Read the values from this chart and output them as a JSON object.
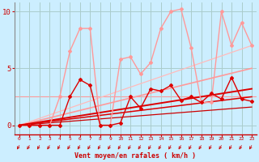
{
  "background_color": "#cceeff",
  "grid_color": "#aacccc",
  "xlim": [
    -0.5,
    23.5
  ],
  "ylim": [
    -0.8,
    10.8
  ],
  "yticks": [
    0,
    5,
    10
  ],
  "xticks": [
    0,
    1,
    2,
    3,
    4,
    5,
    6,
    7,
    8,
    9,
    10,
    11,
    12,
    13,
    14,
    15,
    16,
    17,
    18,
    19,
    20,
    21,
    22,
    23
  ],
  "xlabel": "Vent moyen/en rafales ( km/h )",
  "xlabel_color": "#cc0000",
  "tick_color": "#cc0000",
  "arrow_color": "#cc0000",
  "line_dark_x": [
    0,
    1,
    2,
    3,
    4,
    5,
    6,
    7,
    8,
    9,
    10,
    11,
    12,
    13,
    14,
    15,
    16,
    17,
    18,
    19,
    20,
    21,
    22,
    23
  ],
  "line_dark_y": [
    0,
    0,
    0,
    0,
    0,
    2.5,
    4.0,
    3.5,
    0,
    0,
    0.2,
    2.5,
    1.5,
    3.2,
    3.0,
    3.5,
    2.2,
    2.5,
    2.0,
    2.8,
    2.3,
    4.2,
    2.3,
    2.1
  ],
  "line_dark_color": "#dd0000",
  "line_dark_lw": 1.0,
  "line_light_x": [
    0,
    1,
    2,
    3,
    4,
    5,
    6,
    7,
    8,
    9,
    10,
    11,
    12,
    13,
    14,
    15,
    16,
    17,
    18,
    19,
    20,
    21,
    22,
    23
  ],
  "line_light_y": [
    0,
    0,
    0,
    0,
    2.5,
    6.5,
    8.5,
    8.5,
    0,
    0,
    5.8,
    6.0,
    4.5,
    5.5,
    8.5,
    10.0,
    10.2,
    6.8,
    2.0,
    2.0,
    10.0,
    7.0,
    9.0,
    7.0
  ],
  "line_light_color": "#ff9999",
  "line_light_lw": 1.0,
  "hline_y": 2.5,
  "hline_color": "#ff9999",
  "hline_lw": 0.8,
  "trend_lines": [
    {
      "x": [
        0,
        23
      ],
      "y": [
        0.0,
        5.0
      ],
      "color": "#ff9999",
      "lw": 1.2
    },
    {
      "x": [
        0,
        23
      ],
      "y": [
        0.0,
        7.0
      ],
      "color": "#ffbbbb",
      "lw": 0.9
    },
    {
      "x": [
        0,
        23
      ],
      "y": [
        0.0,
        3.2
      ],
      "color": "#dd0000",
      "lw": 1.4
    },
    {
      "x": [
        0,
        23
      ],
      "y": [
        0.0,
        2.5
      ],
      "color": "#dd0000",
      "lw": 1.1
    },
    {
      "x": [
        0,
        23
      ],
      "y": [
        0.0,
        1.6
      ],
      "color": "#cc0000",
      "lw": 0.9
    }
  ]
}
